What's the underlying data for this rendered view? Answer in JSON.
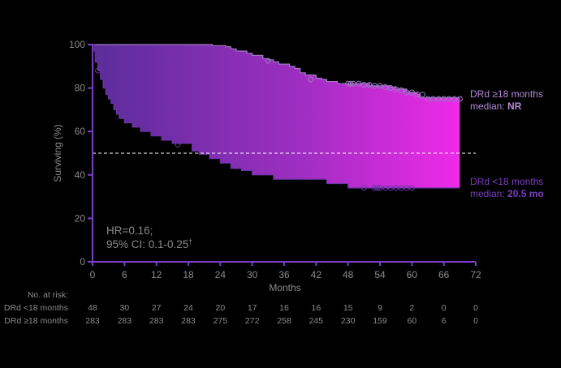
{
  "chart_data": {
    "type": "line",
    "subtype": "kaplan-meier",
    "title": "",
    "xlabel": "Months",
    "ylabel": "Surviving (%)",
    "xlim": [
      0,
      72
    ],
    "ylim": [
      0,
      100
    ],
    "x_ticks": [
      0,
      6,
      12,
      18,
      24,
      30,
      36,
      42,
      48,
      54,
      60,
      66,
      72
    ],
    "y_ticks": [
      0,
      20,
      40,
      60,
      80,
      100
    ],
    "grid": false,
    "reference_line": {
      "y": 50,
      "style": "dashed",
      "color": "#ffffff"
    },
    "series": [
      {
        "name": "DRd ≥18 months",
        "legend_line1": "DRd ≥18 months",
        "legend_prefix": "median: ",
        "legend_value": "NR",
        "color": "#b28ad8",
        "points": [
          [
            0,
            100
          ],
          [
            22,
            100
          ],
          [
            22.5,
            99.5
          ],
          [
            25,
            99
          ],
          [
            26,
            98
          ],
          [
            27,
            97
          ],
          [
            29,
            96
          ],
          [
            30,
            95
          ],
          [
            32,
            93.5
          ],
          [
            33,
            93
          ],
          [
            34,
            92
          ],
          [
            35,
            91
          ],
          [
            37,
            90
          ],
          [
            38,
            89
          ],
          [
            39,
            87
          ],
          [
            40,
            86
          ],
          [
            42,
            84.5
          ],
          [
            43,
            84
          ],
          [
            44,
            83
          ],
          [
            46,
            82
          ],
          [
            52,
            81
          ],
          [
            56,
            80.5
          ],
          [
            57,
            79.5
          ],
          [
            59,
            78
          ],
          [
            61,
            77
          ],
          [
            61.5,
            75.5
          ],
          [
            69,
            75.5
          ]
        ],
        "censored": [
          [
            33,
            92.5
          ],
          [
            41,
            84
          ],
          [
            48,
            82
          ],
          [
            48.5,
            82
          ],
          [
            49,
            82
          ],
          [
            50,
            82
          ],
          [
            51,
            81.5
          ],
          [
            52,
            81.5
          ],
          [
            53,
            81
          ],
          [
            54,
            81
          ],
          [
            55,
            80.5
          ],
          [
            56,
            80
          ],
          [
            57,
            79.5
          ],
          [
            58,
            79
          ],
          [
            59,
            78
          ],
          [
            60,
            78
          ],
          [
            61,
            77
          ],
          [
            62,
            77
          ],
          [
            63,
            75
          ],
          [
            64,
            75
          ],
          [
            65,
            75
          ],
          [
            66,
            75
          ],
          [
            67,
            75
          ],
          [
            68,
            75
          ],
          [
            69,
            75
          ]
        ]
      },
      {
        "name": "DRd <18 months",
        "legend_line1": "DRd <18 months",
        "legend_prefix": "median: ",
        "legend_value": "20.5 mo",
        "color": "#7a3fc0",
        "points": [
          [
            0,
            100
          ],
          [
            0.3,
            97
          ],
          [
            0.5,
            92
          ],
          [
            1,
            88
          ],
          [
            1.5,
            84
          ],
          [
            2,
            80
          ],
          [
            2.5,
            77
          ],
          [
            3,
            75
          ],
          [
            3.5,
            73
          ],
          [
            4,
            70
          ],
          [
            4.5,
            68
          ],
          [
            5,
            66
          ],
          [
            6,
            64
          ],
          [
            7.5,
            62
          ],
          [
            9,
            60
          ],
          [
            11,
            58
          ],
          [
            13,
            56
          ],
          [
            15,
            54.5
          ],
          [
            18.5,
            54.5
          ],
          [
            18.7,
            51
          ],
          [
            20,
            49.5
          ],
          [
            22,
            47.5
          ],
          [
            24,
            45.5
          ],
          [
            26,
            43
          ],
          [
            28,
            42
          ],
          [
            30,
            40
          ],
          [
            34,
            38
          ],
          [
            38,
            38
          ],
          [
            44,
            36
          ],
          [
            48,
            34
          ],
          [
            69,
            34
          ]
        ],
        "censored": [
          [
            1,
            88
          ],
          [
            16,
            54
          ],
          [
            27,
            44
          ],
          [
            51,
            34
          ],
          [
            53,
            34
          ],
          [
            53.5,
            34
          ],
          [
            54,
            34
          ],
          [
            55,
            34
          ],
          [
            56,
            34
          ],
          [
            57,
            34
          ],
          [
            58,
            34
          ],
          [
            59,
            34
          ],
          [
            60,
            34
          ]
        ]
      }
    ],
    "annotation": {
      "line1": "HR=0.16;",
      "line2_main": "95% CI: 0.1-0.25",
      "line2_sup": "†"
    },
    "risk_table": {
      "title": "No. at risk:",
      "timepoints": [
        0,
        6,
        12,
        18,
        24,
        30,
        36,
        42,
        48,
        54,
        60,
        66,
        72
      ],
      "rows": [
        {
          "label": "DRd <18 months",
          "values": [
            48,
            30,
            27,
            24,
            20,
            17,
            16,
            16,
            15,
            9,
            2,
            0,
            0
          ]
        },
        {
          "label": "DRd ≥18 months",
          "values": [
            283,
            283,
            283,
            283,
            275,
            272,
            258,
            245,
            230,
            159,
            60,
            6,
            0
          ]
        }
      ]
    },
    "colors": {
      "axis": "#7b3fc6",
      "fill_start": "#5a2d9a",
      "fill_end": "#ee2ae8",
      "tick_text": "#8a8a8a",
      "legend_upper": "#b28ad8",
      "legend_lower": "#7a3fc0"
    }
  }
}
